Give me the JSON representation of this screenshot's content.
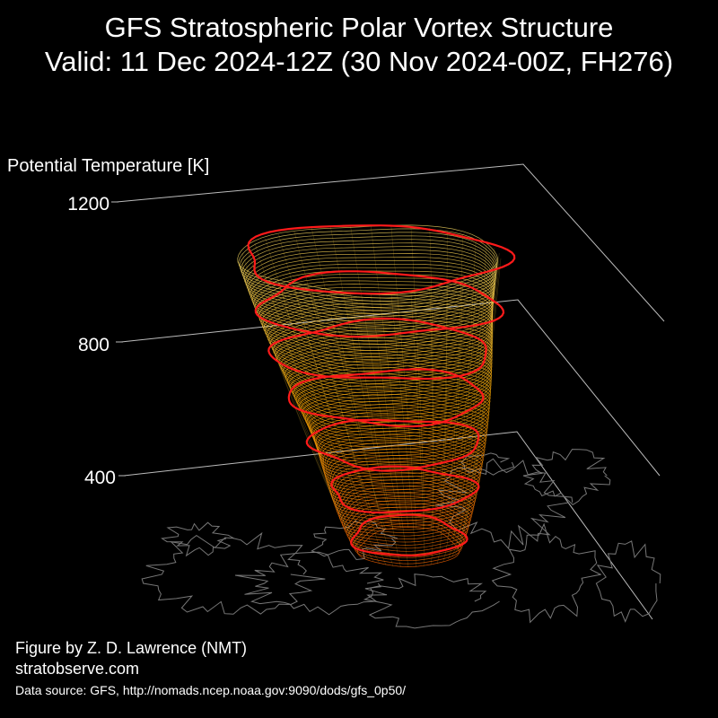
{
  "title": "GFS Stratospheric Polar Vortex Structure",
  "subtitle": "Valid: 11 Dec 2024-12Z  (30 Nov 2024-00Z, FH276)",
  "credit_line1": "Figure by Z. D. Lawrence (NMT)",
  "credit_line2": "stratobserve.com",
  "data_source": "Data source: GFS, http://nomads.ncep.noaa.gov:9090/dods/gfs_0p50/",
  "colors": {
    "background": "#000000",
    "frame": "#bbbbbb",
    "coastline": "#777777",
    "contour_low": "#ff6600",
    "contour_mid": "#ffaa00",
    "contour_high": "#ffe066",
    "highlight": "#ff1a1a"
  },
  "chart_data": {
    "type": "3d-isosurface",
    "title": "GFS Stratospheric Polar Vortex Structure",
    "zlabel": "Potential Temperature [K]",
    "zticks": [
      400,
      800,
      1200
    ],
    "zlim": [
      400,
      1200
    ],
    "highlighted_levels_K": [
      450,
      550,
      650,
      850,
      950,
      1050,
      1200
    ],
    "background": "black",
    "basemap": "Northern Hemisphere coastlines",
    "grid": false
  }
}
